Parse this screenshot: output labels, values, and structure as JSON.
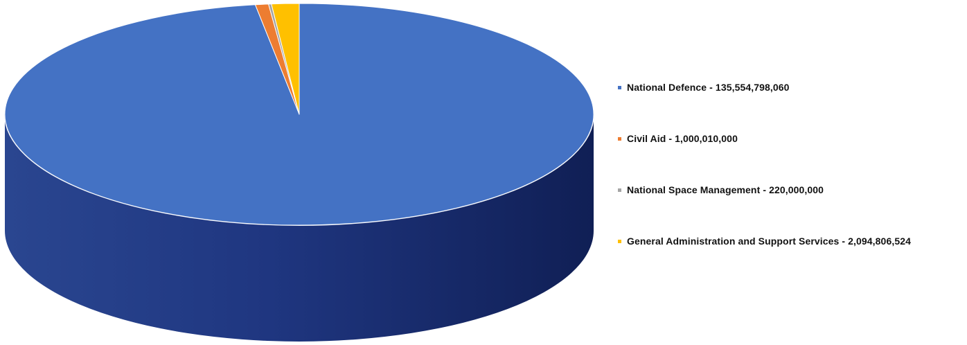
{
  "chart_data": {
    "type": "pie",
    "style": "3d",
    "title": "",
    "categories": [
      "National Defence",
      "Civil Aid",
      "National Space Management",
      "General Administration and Support Services"
    ],
    "values": [
      135554798060,
      1000010000,
      220000000,
      2094806524
    ],
    "colors": [
      "#4472c4",
      "#ed7d31",
      "#a5a5a5",
      "#ffc000"
    ],
    "legend_position": "right"
  },
  "legend": {
    "items": [
      {
        "label": "National Defence - 135,554,798,060",
        "color": "#4472c4"
      },
      {
        "label": "Civil Aid - 1,000,010,000",
        "color": "#ed7d31"
      },
      {
        "label": "National Space Management - 220,000,000",
        "color": "#a5a5a5"
      },
      {
        "label": "General Administration and Support Services - 2,094,806,524",
        "color": "#ffc000"
      }
    ]
  }
}
